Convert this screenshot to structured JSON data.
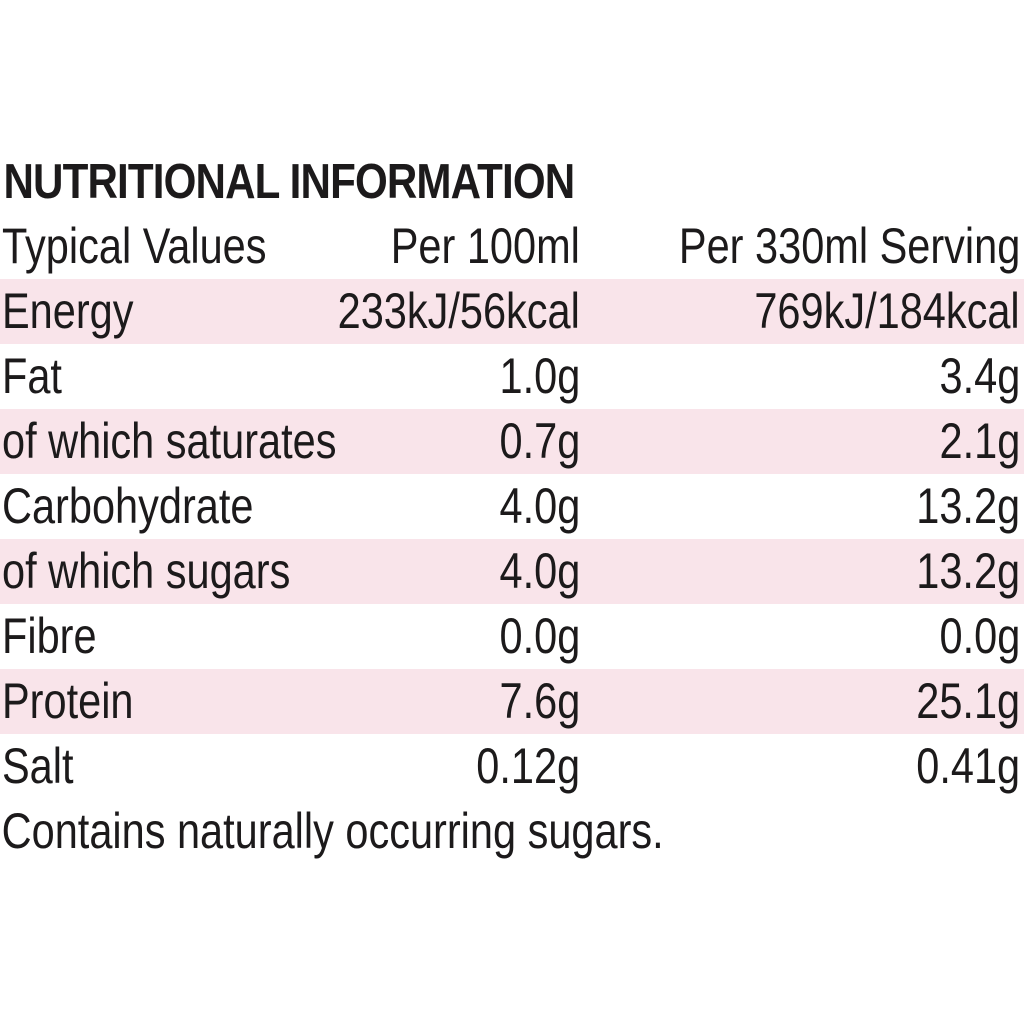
{
  "title": "NUTRITIONAL INFORMATION",
  "header": {
    "label": "Typical Values",
    "per100": "Per 100ml",
    "perServing": "Per 330ml Serving"
  },
  "rows": [
    {
      "label": "Energy",
      "per100": "233kJ/56kcal",
      "perServing": "769kJ/184kcal"
    },
    {
      "label": "Fat",
      "per100": "1.0g",
      "perServing": "3.4g"
    },
    {
      "label": "of which saturates",
      "per100": "0.7g",
      "perServing": "2.1g"
    },
    {
      "label": "Carbohydrate",
      "per100": "4.0g",
      "perServing": "13.2g"
    },
    {
      "label": "of which sugars",
      "per100": "4.0g",
      "perServing": "13.2g"
    },
    {
      "label": "Fibre",
      "per100": "0.0g",
      "perServing": "0.0g"
    },
    {
      "label": "Protein",
      "per100": "7.6g",
      "perServing": "25.1g"
    },
    {
      "label": "Salt",
      "per100": "0.12g",
      "perServing": "0.41g"
    }
  ],
  "footnote": "Contains naturally occurring sugars.",
  "colors": {
    "text": "#1c1a1b",
    "rowShade": "#f9e4ea",
    "background": "#ffffff"
  }
}
